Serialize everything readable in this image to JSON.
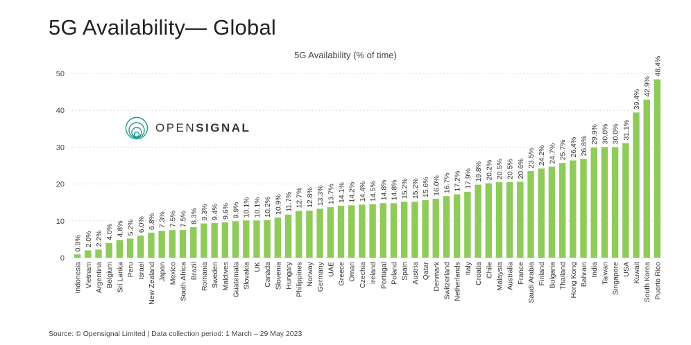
{
  "page_title": "5G Availability— Global",
  "logo": {
    "prefix": "OPEN",
    "suffix": "SIGNAL"
  },
  "source": "Source: © Opensignal Limited  |  Data collection period: 1 March – 29 May 2023",
  "colors": {
    "bar": "#8fcb5a",
    "grid": "#d9d9d9",
    "logo": "#1f9c8f"
  },
  "chart_data": {
    "type": "bar",
    "title": "5G Availability (% of time)",
    "xlabel": "",
    "ylabel": "",
    "ylim": [
      0,
      50
    ],
    "yticks": [
      0,
      10,
      20,
      30,
      40,
      50
    ],
    "grid": true,
    "categories": [
      "Indonesia",
      "Vietnam",
      "Argentina",
      "Belgium",
      "Sri Lanka",
      "Peru",
      "Israel",
      "New Zealand",
      "Japan",
      "Mexico",
      "South Africa",
      "Brazil",
      "Romania",
      "Sweden",
      "Maldives",
      "Guatemala",
      "Slovakia",
      "UK",
      "Canada",
      "Slovenia",
      "Hungary",
      "Philippines",
      "Norway",
      "Germany",
      "UAE",
      "Greece",
      "Oman",
      "Czechia",
      "Ireland",
      "Portugal",
      "Poland",
      "Spain",
      "Austria",
      "Qatar",
      "Denmark",
      "Switzerland",
      "Netherlands",
      "Italy",
      "Croatia",
      "Chile",
      "Malaysia",
      "Australia",
      "France",
      "Saudi Arabia",
      "Finland",
      "Bulgaria",
      "Thailand",
      "Hong Kong",
      "Bahrain",
      "India",
      "Taiwan",
      "Singapore",
      "USA",
      "Kuwait",
      "South Korea",
      "Puerto Rico"
    ],
    "values": [
      0.9,
      2.0,
      2.2,
      4.0,
      4.8,
      5.2,
      6.0,
      6.8,
      7.3,
      7.5,
      7.5,
      8.3,
      9.3,
      9.4,
      9.6,
      9.9,
      10.1,
      10.1,
      10.2,
      10.9,
      11.7,
      12.7,
      12.8,
      13.3,
      13.7,
      14.1,
      14.2,
      14.4,
      14.5,
      14.8,
      14.8,
      15.2,
      15.2,
      15.6,
      16.0,
      16.7,
      17.2,
      17.9,
      19.8,
      20.2,
      20.5,
      20.5,
      20.6,
      23.5,
      24.2,
      24.7,
      25.7,
      26.4,
      26.8,
      29.9,
      30.0,
      30.0,
      31.1,
      39.4,
      42.9,
      48.4
    ],
    "labels": [
      "0.9%",
      "2.0%",
      "2.2%",
      "4.0%",
      "4.8%",
      "5.2%",
      "6.0%",
      "6.8%",
      "7.3%",
      "7.5%",
      "7.5%",
      "8.3%",
      "9.3%",
      "9.4%",
      "9.6%",
      "9.9%",
      "10.1%",
      "10.1%",
      "10.2%",
      "10.9%",
      "11.7%",
      "12.7%",
      "12.8%",
      "13.3%",
      "13.7%",
      "14.1%",
      "14.2%",
      "14.4%",
      "14.5%",
      "14.8%",
      "14.8%",
      "15.2%",
      "15.2%",
      "15.6%",
      "16.0%",
      "16.7%",
      "17.2%",
      "17.9%",
      "19.8%",
      "20.2%",
      "20.5%",
      "20.5%",
      "20.6%",
      "23.5%",
      "24.2%",
      "24.7%",
      "25.7%",
      "26.4%",
      "26.8%",
      "29.9%",
      "30.0%",
      "30.0%",
      "31.1%",
      "39.4%",
      "42.9%",
      "48.4%"
    ]
  }
}
